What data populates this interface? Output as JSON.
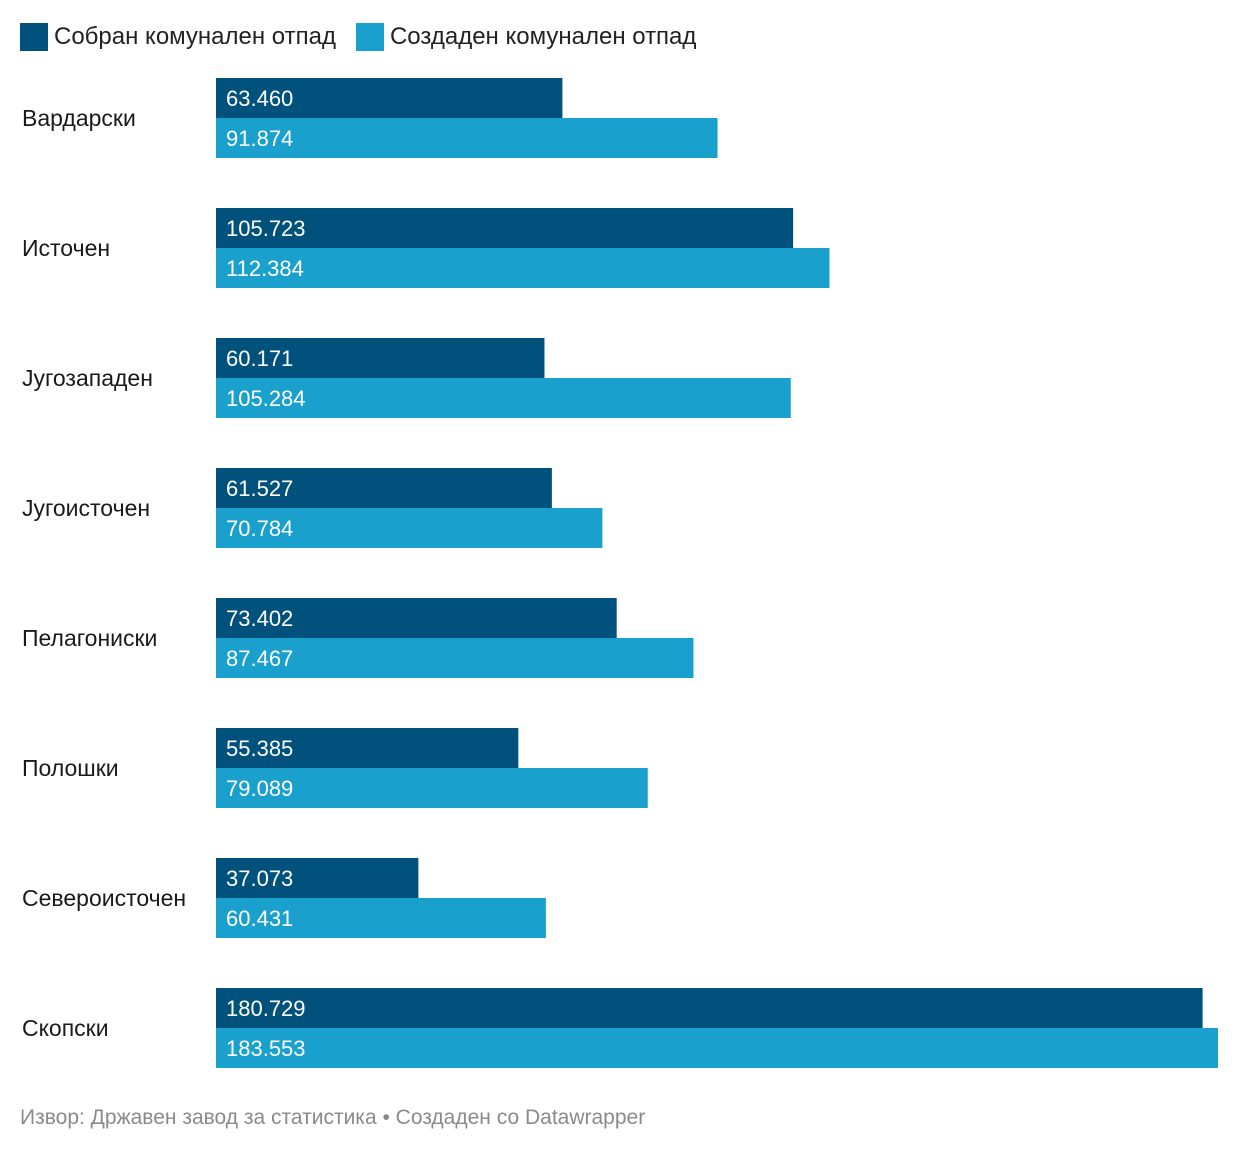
{
  "chart_data": {
    "type": "bar",
    "orientation": "horizontal",
    "categories": [
      "Вардарски",
      "Источен",
      "Југозападен",
      "Југоисточен",
      "Пелагониски",
      "Полошки",
      "Североисточен",
      "Скопски"
    ],
    "series": [
      {
        "name": "Собран комунален отпад",
        "color": "#00527c",
        "values": [
          63460,
          105723,
          60171,
          61527,
          73402,
          55385,
          37073,
          180729
        ],
        "labels": [
          "63.460",
          "105.723",
          "60.171",
          "61.527",
          "73.402",
          "55.385",
          "37.073",
          "180.729"
        ]
      },
      {
        "name": "Создаден комунален отпад",
        "color": "#1aa0cc",
        "values": [
          91874,
          112384,
          105284,
          70784,
          87467,
          79089,
          60431,
          183553
        ],
        "labels": [
          "91.874",
          "112.384",
          "105.284",
          "70.784",
          "87.467",
          "79.089",
          "60.431",
          "183.553"
        ]
      }
    ],
    "xlim": [
      0,
      183553
    ],
    "grid": false,
    "legend_position": "top-left",
    "title": "",
    "xlabel": "",
    "ylabel": ""
  },
  "footer": {
    "text": "Извор: Државен завод за статистика • Создаден со Datawrapper"
  }
}
